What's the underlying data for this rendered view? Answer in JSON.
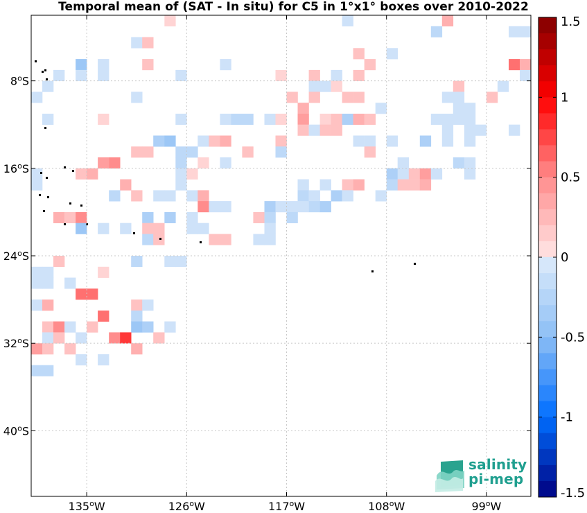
{
  "title": "Temporal mean of (SAT - In situ) for C5 in 1°x1° boxes over 2010-2022",
  "map": {
    "lon_range": [
      -140,
      -95
    ],
    "lat_range": [
      -46,
      -2
    ],
    "x_ticks": [
      {
        "lon": -135,
        "label": "135°W"
      },
      {
        "lon": -126,
        "label": "126°W"
      },
      {
        "lon": -117,
        "label": "117°W"
      },
      {
        "lon": -108,
        "label": "108°W"
      },
      {
        "lon": -99,
        "label": "99°W"
      }
    ],
    "y_ticks": [
      {
        "lat": -8,
        "label": "8°S"
      },
      {
        "lat": -16,
        "label": "16°S"
      },
      {
        "lat": -24,
        "label": "24°S"
      },
      {
        "lat": -32,
        "label": "32°S"
      },
      {
        "lat": -40,
        "label": "40°S"
      }
    ],
    "grid": true
  },
  "colorbar": {
    "range": [
      -1.5,
      1.5
    ],
    "step": 0.1,
    "ticks": [
      {
        "value": 1.5,
        "label": "1.5"
      },
      {
        "value": 1,
        "label": "1"
      },
      {
        "value": 0.5,
        "label": "0.5"
      },
      {
        "value": 0,
        "label": "0"
      },
      {
        "value": -0.5,
        "label": "-0.5"
      },
      {
        "value": -1,
        "label": "-1"
      },
      {
        "value": -1.5,
        "label": "-1.5"
      }
    ]
  },
  "chart_data": {
    "type": "heatmap",
    "title": "Temporal mean of (SAT - In situ) for C5 in 1°x1° boxes over 2010-2022",
    "cell_size_deg": 1,
    "value_range": [
      -1.5,
      1.5
    ],
    "cells": [
      {
        "lon": -127.5,
        "lat": -2.5,
        "v": 0.1
      },
      {
        "lon": -111.5,
        "lat": -2.5,
        "v": -0.1
      },
      {
        "lon": -103.5,
        "lat": -3.5,
        "v": -0.2
      },
      {
        "lon": -102.5,
        "lat": -2.5,
        "v": 0.3
      },
      {
        "lon": -96.5,
        "lat": -3.5,
        "v": -0.1
      },
      {
        "lon": -95.5,
        "lat": -3.5,
        "v": -0.1
      },
      {
        "lon": -130.5,
        "lat": -4.5,
        "v": -0.1
      },
      {
        "lon": -129.5,
        "lat": -4.5,
        "v": 0.2
      },
      {
        "lon": -110.5,
        "lat": -5.5,
        "v": 0.2
      },
      {
        "lon": -109.5,
        "lat": -6.5,
        "v": 0.2
      },
      {
        "lon": -107.5,
        "lat": -5.5,
        "v": -0.1
      },
      {
        "lon": -135.5,
        "lat": -6.5,
        "v": -0.4
      },
      {
        "lon": -133.5,
        "lat": -6.5,
        "v": -0.1
      },
      {
        "lon": -129.5,
        "lat": -6.5,
        "v": 0.2
      },
      {
        "lon": -122.5,
        "lat": -6.5,
        "v": -0.1
      },
      {
        "lon": -96.5,
        "lat": -6.5,
        "v": 0.6
      },
      {
        "lon": -95.5,
        "lat": -6.5,
        "v": 0.3
      },
      {
        "lon": -137.5,
        "lat": -7.5,
        "v": -0.1
      },
      {
        "lon": -135.5,
        "lat": -7.5,
        "v": -0.1
      },
      {
        "lon": -133.5,
        "lat": -7.5,
        "v": -0.1
      },
      {
        "lon": -126.5,
        "lat": -7.5,
        "v": -0.1
      },
      {
        "lon": -117.5,
        "lat": -7.5,
        "v": 0.1
      },
      {
        "lon": -114.5,
        "lat": -7.5,
        "v": 0.2
      },
      {
        "lon": -112.5,
        "lat": -7.5,
        "v": -0.1
      },
      {
        "lon": -110.5,
        "lat": -7.5,
        "v": 0.2
      },
      {
        "lon": -95.5,
        "lat": -7.5,
        "v": -0.1
      },
      {
        "lon": -138.5,
        "lat": -8.5,
        "v": -0.1
      },
      {
        "lon": -114.5,
        "lat": -8.5,
        "v": -0.1
      },
      {
        "lon": -113.5,
        "lat": -8.5,
        "v": -0.1
      },
      {
        "lon": -112.5,
        "lat": -8.5,
        "v": 0.1
      },
      {
        "lon": -101.5,
        "lat": -8.5,
        "v": 0.2
      },
      {
        "lon": -97.5,
        "lat": -8.5,
        "v": -0.1
      },
      {
        "lon": -139.5,
        "lat": -9.5,
        "v": -0.1
      },
      {
        "lon": -130.5,
        "lat": -9.5,
        "v": -0.1
      },
      {
        "lon": -116.5,
        "lat": -9.5,
        "v": 0.2
      },
      {
        "lon": -114.5,
        "lat": -9.5,
        "v": 0.2
      },
      {
        "lon": -111.5,
        "lat": -9.5,
        "v": 0.2
      },
      {
        "lon": -110.5,
        "lat": -9.5,
        "v": 0.2
      },
      {
        "lon": -102.5,
        "lat": -9.5,
        "v": -0.1
      },
      {
        "lon": -101.5,
        "lat": -9.5,
        "v": -0.1
      },
      {
        "lon": -98.5,
        "lat": -9.5,
        "v": 0.2
      },
      {
        "lon": -115.5,
        "lat": -10.5,
        "v": 0.3
      },
      {
        "lon": -108.5,
        "lat": -10.5,
        "v": -0.1
      },
      {
        "lon": -101.5,
        "lat": -10.5,
        "v": -0.1
      },
      {
        "lon": -100.5,
        "lat": -10.5,
        "v": -0.1
      },
      {
        "lon": -138.5,
        "lat": -11.5,
        "v": -0.1
      },
      {
        "lon": -133.5,
        "lat": -11.5,
        "v": 0.1
      },
      {
        "lon": -126.5,
        "lat": -11.5,
        "v": -0.1
      },
      {
        "lon": -122.5,
        "lat": -11.5,
        "v": -0.1
      },
      {
        "lon": -121.5,
        "lat": -11.5,
        "v": -0.2
      },
      {
        "lon": -120.5,
        "lat": -11.5,
        "v": -0.2
      },
      {
        "lon": -118.5,
        "lat": -11.5,
        "v": -0.1
      },
      {
        "lon": -117.5,
        "lat": -11.5,
        "v": 0.1
      },
      {
        "lon": -115.5,
        "lat": -11.5,
        "v": 0.4
      },
      {
        "lon": -113.5,
        "lat": -11.5,
        "v": 0.1
      },
      {
        "lon": -112.5,
        "lat": -11.5,
        "v": 0.2
      },
      {
        "lon": -111.5,
        "lat": -11.5,
        "v": -0.3
      },
      {
        "lon": -110.5,
        "lat": -11.5,
        "v": 0.3
      },
      {
        "lon": -109.5,
        "lat": -11.5,
        "v": 0.2
      },
      {
        "lon": -103.5,
        "lat": -11.5,
        "v": -0.1
      },
      {
        "lon": -102.5,
        "lat": -11.5,
        "v": -0.1
      },
      {
        "lon": -101.5,
        "lat": -11.5,
        "v": -0.1
      },
      {
        "lon": -100.5,
        "lat": -11.5,
        "v": -0.1
      },
      {
        "lon": -115.5,
        "lat": -12.5,
        "v": 0.2
      },
      {
        "lon": -114.5,
        "lat": -12.5,
        "v": -0.1
      },
      {
        "lon": -113.5,
        "lat": -12.5,
        "v": 0.2
      },
      {
        "lon": -112.5,
        "lat": -12.5,
        "v": 0.2
      },
      {
        "lon": -102.5,
        "lat": -12.5,
        "v": -0.1
      },
      {
        "lon": -99.5,
        "lat": -12.5,
        "v": -0.1
      },
      {
        "lon": -96.5,
        "lat": -12.5,
        "v": -0.1
      },
      {
        "lon": -100.5,
        "lat": -12.5,
        "v": -0.1
      },
      {
        "lon": -128.5,
        "lat": -13.5,
        "v": -0.3
      },
      {
        "lon": -127.5,
        "lat": -13.5,
        "v": -0.4
      },
      {
        "lon": -124.5,
        "lat": -13.5,
        "v": -0.1
      },
      {
        "lon": -123.5,
        "lat": -13.5,
        "v": 0.2
      },
      {
        "lon": -122.5,
        "lat": -13.5,
        "v": 0.3
      },
      {
        "lon": -117.5,
        "lat": -13.5,
        "v": 0.2
      },
      {
        "lon": -110.5,
        "lat": -13.5,
        "v": -0.1
      },
      {
        "lon": -109.5,
        "lat": -13.5,
        "v": -0.1
      },
      {
        "lon": -107.5,
        "lat": -13.5,
        "v": -0.1
      },
      {
        "lon": -104.5,
        "lat": -13.5,
        "v": -0.3
      },
      {
        "lon": -102.5,
        "lat": -13.5,
        "v": -0.1
      },
      {
        "lon": -100.5,
        "lat": -13.5,
        "v": -0.1
      },
      {
        "lon": -130.5,
        "lat": -14.5,
        "v": 0.2
      },
      {
        "lon": -129.5,
        "lat": -14.5,
        "v": 0.2
      },
      {
        "lon": -126.5,
        "lat": -14.5,
        "v": -0.2
      },
      {
        "lon": -125.5,
        "lat": -14.5,
        "v": -0.2
      },
      {
        "lon": -120.5,
        "lat": -14.5,
        "v": 0.2
      },
      {
        "lon": -117.5,
        "lat": -14.5,
        "v": -0.2
      },
      {
        "lon": -109.5,
        "lat": -14.5,
        "v": 0.2
      },
      {
        "lon": -133.5,
        "lat": -15.5,
        "v": 0.4
      },
      {
        "lon": -132.5,
        "lat": -15.5,
        "v": 0.5
      },
      {
        "lon": -126.5,
        "lat": -15.5,
        "v": -0.2
      },
      {
        "lon": -124.5,
        "lat": -15.5,
        "v": 0.1
      },
      {
        "lon": -122.5,
        "lat": -15.5,
        "v": -0.1
      },
      {
        "lon": -106.5,
        "lat": -15.5,
        "v": -0.1
      },
      {
        "lon": -101.5,
        "lat": -15.5,
        "v": -0.2
      },
      {
        "lon": -100.5,
        "lat": -15.5,
        "v": -0.1
      },
      {
        "lon": -139.5,
        "lat": -16.5,
        "v": -0.1
      },
      {
        "lon": -135.5,
        "lat": -16.5,
        "v": 0.2
      },
      {
        "lon": -134.5,
        "lat": -16.5,
        "v": 0.3
      },
      {
        "lon": -126.5,
        "lat": -16.5,
        "v": -0.1
      },
      {
        "lon": -125.5,
        "lat": -16.5,
        "v": 0.1
      },
      {
        "lon": -107.5,
        "lat": -16.5,
        "v": -0.3
      },
      {
        "lon": -106.5,
        "lat": -16.5,
        "v": -0.1
      },
      {
        "lon": -105.5,
        "lat": -16.5,
        "v": 0.2
      },
      {
        "lon": -104.5,
        "lat": -16.5,
        "v": 0.4
      },
      {
        "lon": -103.5,
        "lat": -16.5,
        "v": -0.1
      },
      {
        "lon": -100.5,
        "lat": -16.5,
        "v": -0.1
      },
      {
        "lon": -139.5,
        "lat": -17.5,
        "v": -0.1
      },
      {
        "lon": -131.5,
        "lat": -17.5,
        "v": 0.3
      },
      {
        "lon": -126.5,
        "lat": -17.5,
        "v": -0.1
      },
      {
        "lon": -115.5,
        "lat": -17.5,
        "v": -0.1
      },
      {
        "lon": -113.5,
        "lat": -17.5,
        "v": -0.1
      },
      {
        "lon": -111.5,
        "lat": -17.5,
        "v": 0.2
      },
      {
        "lon": -110.5,
        "lat": -17.5,
        "v": 0.3
      },
      {
        "lon": -107.5,
        "lat": -17.5,
        "v": -0.2
      },
      {
        "lon": -106.5,
        "lat": -17.5,
        "v": 0.2
      },
      {
        "lon": -105.5,
        "lat": -17.5,
        "v": 0.2
      },
      {
        "lon": -104.5,
        "lat": -17.5,
        "v": 0.3
      },
      {
        "lon": -132.5,
        "lat": -18.5,
        "v": -0.2
      },
      {
        "lon": -130.5,
        "lat": -18.5,
        "v": 0.2
      },
      {
        "lon": -128.5,
        "lat": -18.5,
        "v": -0.1
      },
      {
        "lon": -127.5,
        "lat": -18.5,
        "v": -0.1
      },
      {
        "lon": -125.5,
        "lat": -18.5,
        "v": -0.1
      },
      {
        "lon": -124.5,
        "lat": -18.5,
        "v": 0.3
      },
      {
        "lon": -115.5,
        "lat": -18.5,
        "v": -0.2
      },
      {
        "lon": -114.5,
        "lat": -18.5,
        "v": -0.1
      },
      {
        "lon": -112.5,
        "lat": -18.5,
        "v": -0.3
      },
      {
        "lon": -111.5,
        "lat": -18.5,
        "v": -0.1
      },
      {
        "lon": -108.5,
        "lat": -18.5,
        "v": -0.1
      },
      {
        "lon": -124.5,
        "lat": -19.5,
        "v": 0.5
      },
      {
        "lon": -123.5,
        "lat": -19.5,
        "v": -0.1
      },
      {
        "lon": -122.5,
        "lat": -19.5,
        "v": -0.1
      },
      {
        "lon": -118.5,
        "lat": -19.5,
        "v": -0.3
      },
      {
        "lon": -117.5,
        "lat": -19.5,
        "v": -0.1
      },
      {
        "lon": -116.5,
        "lat": -19.5,
        "v": -0.1
      },
      {
        "lon": -115.5,
        "lat": -19.5,
        "v": -0.1
      },
      {
        "lon": -114.5,
        "lat": -19.5,
        "v": -0.2
      },
      {
        "lon": -113.5,
        "lat": -19.5,
        "v": -0.3
      },
      {
        "lon": -137.5,
        "lat": -20.5,
        "v": 0.3
      },
      {
        "lon": -136.5,
        "lat": -20.5,
        "v": 0.2
      },
      {
        "lon": -135.5,
        "lat": -20.5,
        "v": 0.5
      },
      {
        "lon": -129.5,
        "lat": -20.5,
        "v": -0.3
      },
      {
        "lon": -127.5,
        "lat": -20.5,
        "v": -0.3
      },
      {
        "lon": -125.5,
        "lat": -20.5,
        "v": -0.1
      },
      {
        "lon": -119.5,
        "lat": -20.5,
        "v": 0.2
      },
      {
        "lon": -118.5,
        "lat": -20.5,
        "v": -0.2
      },
      {
        "lon": -116.5,
        "lat": -20.5,
        "v": -0.2
      },
      {
        "lon": -135.5,
        "lat": -21.5,
        "v": -0.4
      },
      {
        "lon": -133.5,
        "lat": -21.5,
        "v": -0.1
      },
      {
        "lon": -131.5,
        "lat": -21.5,
        "v": -0.1
      },
      {
        "lon": -129.5,
        "lat": -21.5,
        "v": 0.2
      },
      {
        "lon": -128.5,
        "lat": -21.5,
        "v": 0.2
      },
      {
        "lon": -125.5,
        "lat": -21.5,
        "v": -0.1
      },
      {
        "lon": -124.5,
        "lat": -21.5,
        "v": -0.1
      },
      {
        "lon": -118.5,
        "lat": -21.5,
        "v": -0.1
      },
      {
        "lon": -129.5,
        "lat": -22.5,
        "v": -0.2
      },
      {
        "lon": -128.5,
        "lat": -22.5,
        "v": 0.2
      },
      {
        "lon": -123.5,
        "lat": -22.5,
        "v": 0.2
      },
      {
        "lon": -122.5,
        "lat": -22.5,
        "v": 0.2
      },
      {
        "lon": -119.5,
        "lat": -22.5,
        "v": -0.1
      },
      {
        "lon": -118.5,
        "lat": -22.5,
        "v": -0.1
      },
      {
        "lon": -137.5,
        "lat": -24.5,
        "v": 0.2
      },
      {
        "lon": -130.5,
        "lat": -24.5,
        "v": -0.2
      },
      {
        "lon": -127.5,
        "lat": -24.5,
        "v": -0.1
      },
      {
        "lon": -126.5,
        "lat": -24.5,
        "v": -0.1
      },
      {
        "lon": -133.5,
        "lat": -25.5,
        "v": 0.1
      },
      {
        "lon": -139.5,
        "lat": -25.5,
        "v": -0.1
      },
      {
        "lon": -138.5,
        "lat": -25.5,
        "v": -0.1
      },
      {
        "lon": -136.5,
        "lat": -26.5,
        "v": -0.1
      },
      {
        "lon": -139.5,
        "lat": -26.5,
        "v": -0.1
      },
      {
        "lon": -138.5,
        "lat": -26.5,
        "v": -0.1
      },
      {
        "lon": -135.5,
        "lat": -27.5,
        "v": 0.6
      },
      {
        "lon": -134.5,
        "lat": -27.5,
        "v": 0.6
      },
      {
        "lon": -130.5,
        "lat": -28.5,
        "v": 0.2
      },
      {
        "lon": -129.5,
        "lat": -28.5,
        "v": -0.1
      },
      {
        "lon": -139.5,
        "lat": -28.5,
        "v": -0.1
      },
      {
        "lon": -138.5,
        "lat": -28.5,
        "v": 0.3
      },
      {
        "lon": -133.5,
        "lat": -29.5,
        "v": 0.6
      },
      {
        "lon": -130.5,
        "lat": -29.5,
        "v": -0.2
      },
      {
        "lon": -138.5,
        "lat": -30.5,
        "v": 0.2
      },
      {
        "lon": -137.5,
        "lat": -30.5,
        "v": 0.5
      },
      {
        "lon": -136.5,
        "lat": -30.5,
        "v": -0.1
      },
      {
        "lon": -134.5,
        "lat": -30.5,
        "v": 0.2
      },
      {
        "lon": -130.5,
        "lat": -30.5,
        "v": -0.4
      },
      {
        "lon": -129.5,
        "lat": -30.5,
        "v": -0.3
      },
      {
        "lon": -127.5,
        "lat": -30.5,
        "v": -0.1
      },
      {
        "lon": -138.5,
        "lat": -31.5,
        "v": -0.1
      },
      {
        "lon": -137.5,
        "lat": -31.5,
        "v": 0.2
      },
      {
        "lon": -135.5,
        "lat": -31.5,
        "v": -0.1
      },
      {
        "lon": -132.5,
        "lat": -31.5,
        "v": 0.5
      },
      {
        "lon": -131.5,
        "lat": -31.5,
        "v": 0.8
      },
      {
        "lon": -128.5,
        "lat": -31.5,
        "v": 0.2
      },
      {
        "lon": -139.5,
        "lat": -32.5,
        "v": 0.4
      },
      {
        "lon": -138.5,
        "lat": -32.5,
        "v": 0.2
      },
      {
        "lon": -136.5,
        "lat": -32.5,
        "v": 0.2
      },
      {
        "lon": -130.5,
        "lat": -32.5,
        "v": 0.3
      },
      {
        "lon": -135.5,
        "lat": -33.5,
        "v": -0.1
      },
      {
        "lon": -133.5,
        "lat": -33.5,
        "v": -0.1
      },
      {
        "lon": -139.5,
        "lat": -34.5,
        "v": -0.2
      },
      {
        "lon": -138.5,
        "lat": -34.5,
        "v": -0.2
      }
    ]
  }
}
